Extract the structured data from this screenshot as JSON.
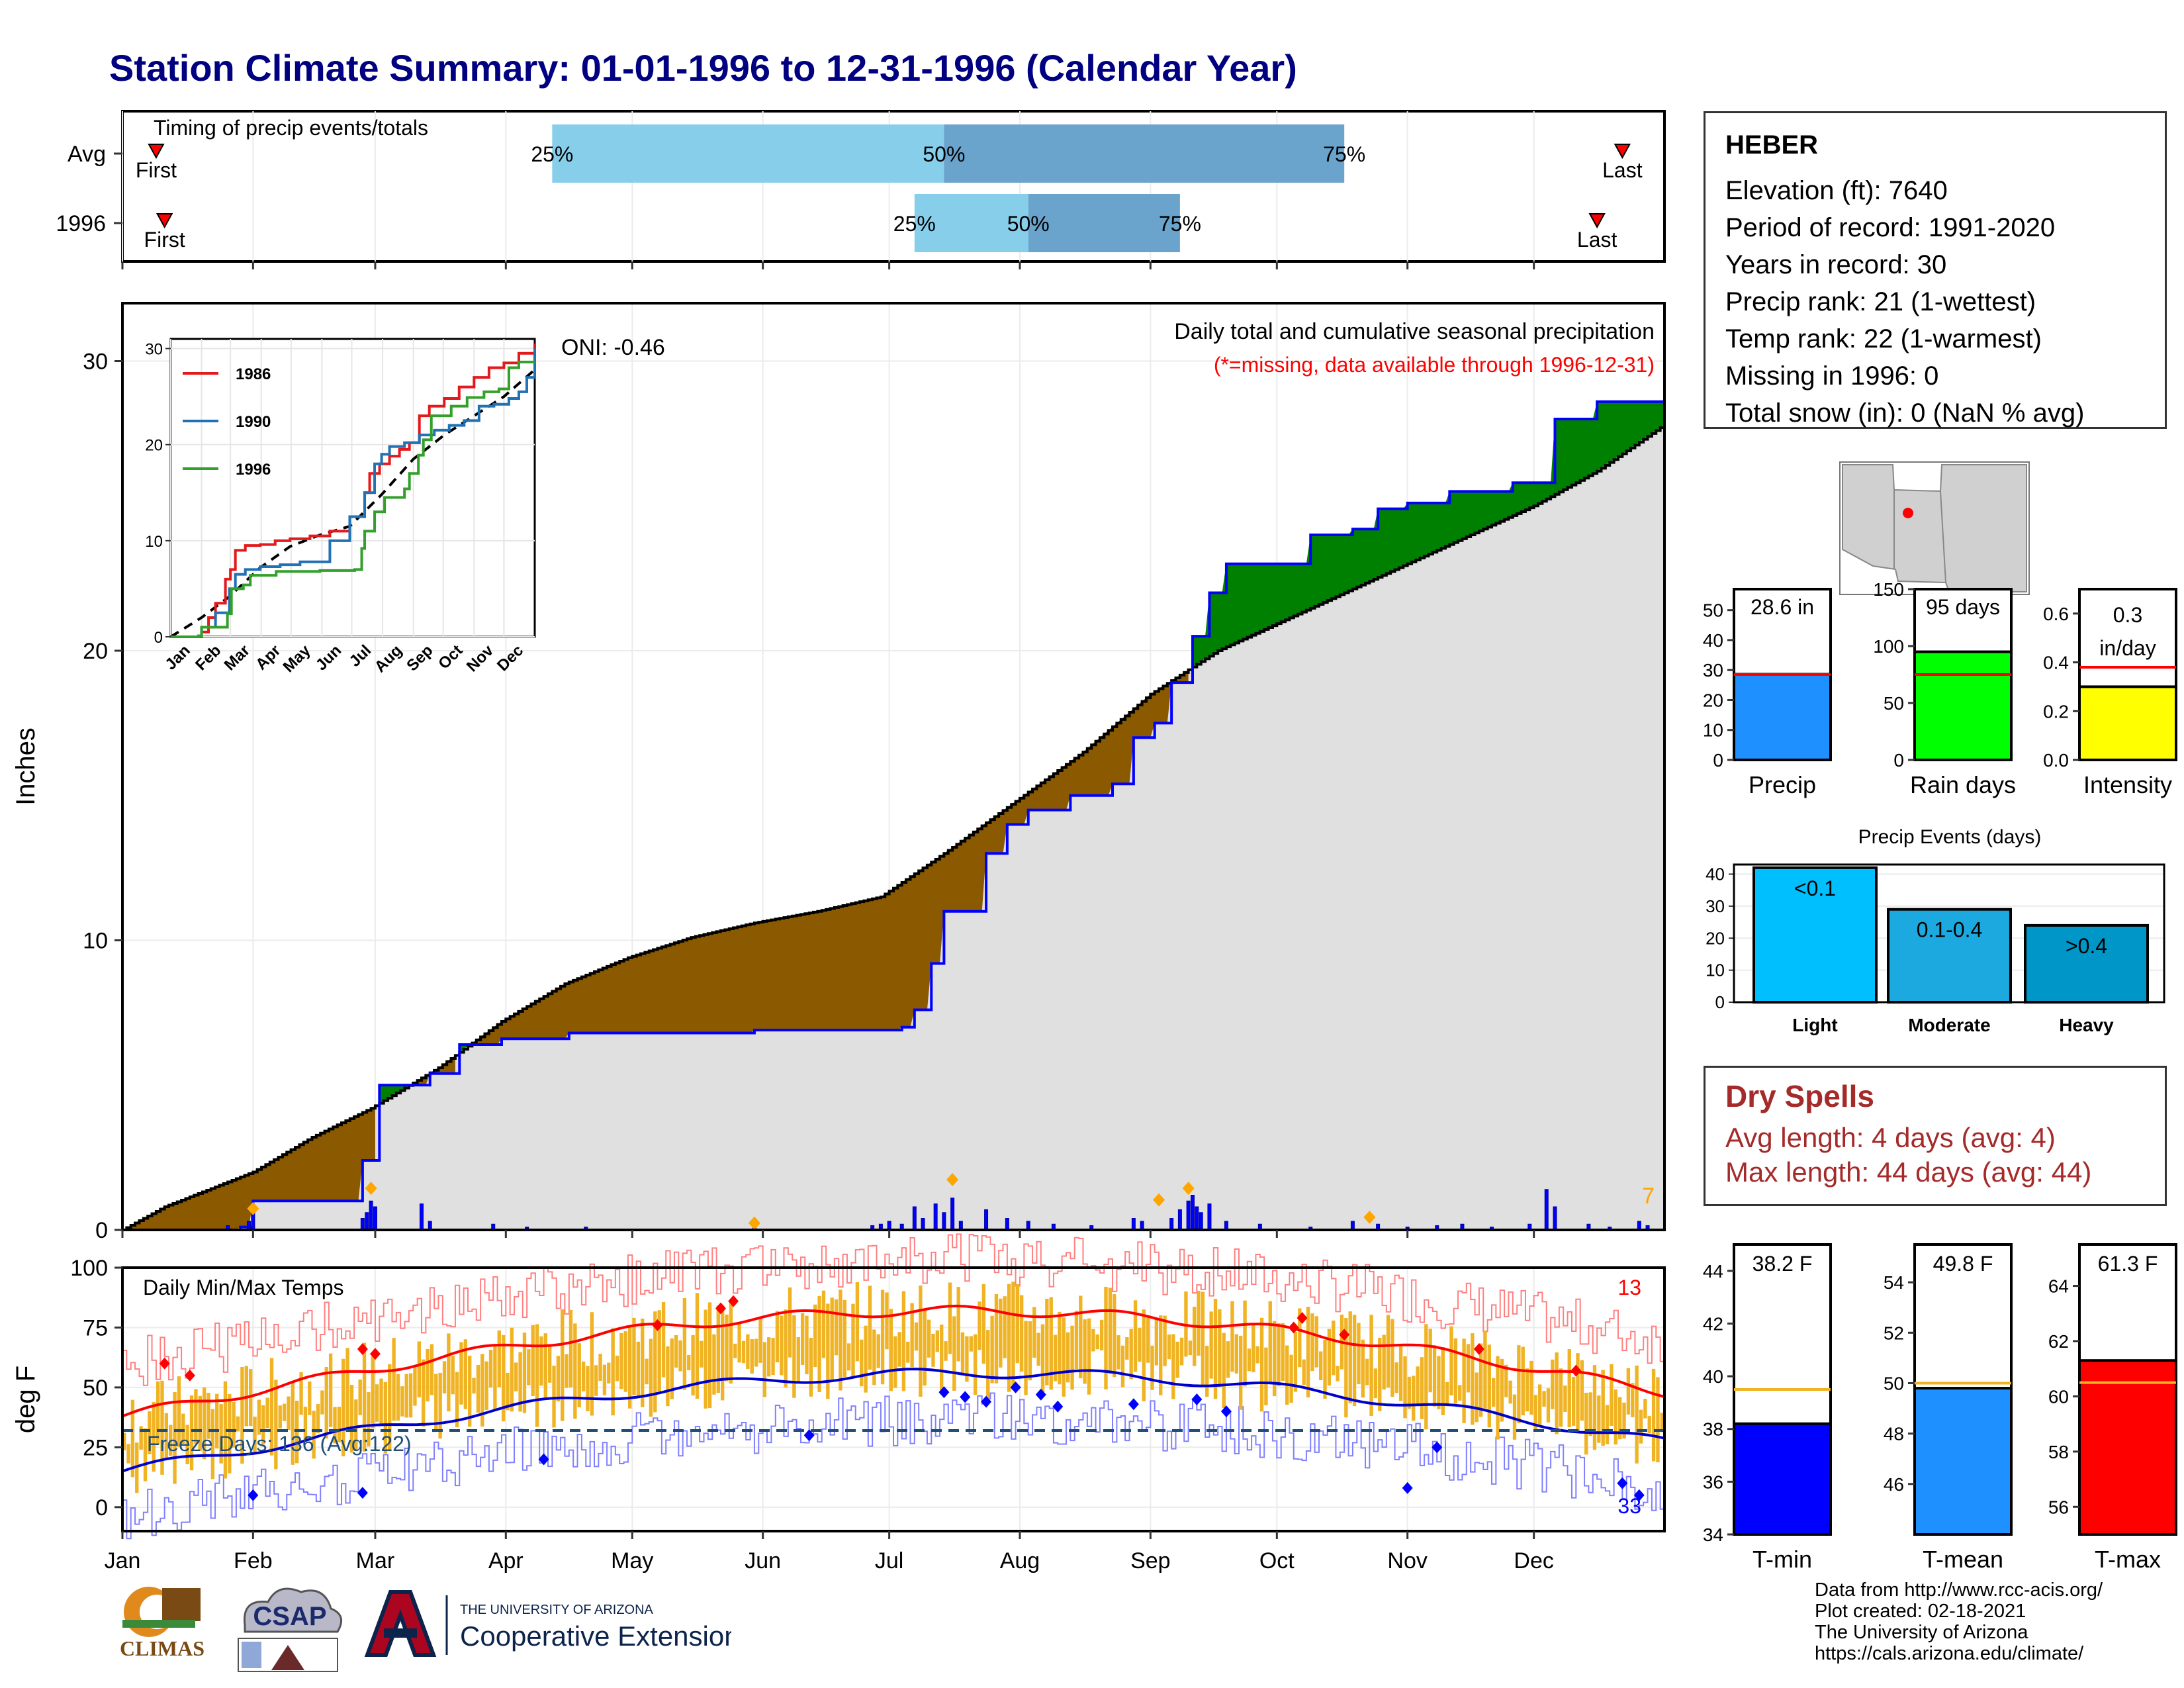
{
  "title": "Station Climate Summary: 01-01-1996 to 12-31-1996 (Calendar Year)",
  "colors": {
    "title": "#000080",
    "normal_fill": "#e0e0e0",
    "below_fill": "#8b5a00",
    "above_fill": "#008000",
    "observed_line": "#0000ff",
    "normal_line": "#000000",
    "q_light": "#87ceeb",
    "q_dark": "#6aa3cc",
    "temp_bar": "#f0b323",
    "tmax": "#ff0000",
    "tmin": "#0000cd",
    "marker": "#ffa500"
  },
  "months": [
    "Jan",
    "Feb",
    "Mar",
    "Apr",
    "May",
    "Jun",
    "Jul",
    "Aug",
    "Sep",
    "Oct",
    "Nov",
    "Dec"
  ],
  "timing": {
    "label": "Timing of precip events/totals",
    "rows": [
      {
        "name": "Avg",
        "first": "First",
        "last": "Last",
        "first_doy": 8,
        "last_doy": 356,
        "q25": 102,
        "q50": 195,
        "q75": 290
      },
      {
        "name": "1996",
        "first": "First",
        "last": "Last",
        "first_doy": 10,
        "last_doy": 350,
        "q25": 188,
        "q50": 215,
        "q75": 251
      }
    ],
    "q_labels": [
      "25%",
      "50%",
      "75%"
    ]
  },
  "precip": {
    "ylabel": "Inches",
    "oni": "ONI: -0.46",
    "title": "Daily total and cumulative seasonal precipitation",
    "subtitle": "(*=missing, data available through 1996-12-31)",
    "count_label": "7",
    "y_ticks": [
      0,
      10,
      20,
      30
    ],
    "ylim": [
      0,
      32
    ],
    "normal_points": [
      [
        0,
        0
      ],
      [
        10,
        0.8
      ],
      [
        31,
        2.0
      ],
      [
        45,
        3.2
      ],
      [
        59,
        4.2
      ],
      [
        75,
        5.6
      ],
      [
        90,
        7.2
      ],
      [
        105,
        8.5
      ],
      [
        120,
        9.4
      ],
      [
        135,
        10.1
      ],
      [
        150,
        10.6
      ],
      [
        165,
        11.0
      ],
      [
        180,
        11.5
      ],
      [
        195,
        13.0
      ],
      [
        212,
        14.8
      ],
      [
        228,
        16.5
      ],
      [
        244,
        18.5
      ],
      [
        260,
        20.0
      ],
      [
        275,
        21.0
      ],
      [
        290,
        22.0
      ],
      [
        305,
        23.0
      ],
      [
        320,
        24.0
      ],
      [
        335,
        25.0
      ],
      [
        350,
        26.2
      ],
      [
        366,
        27.8
      ]
    ],
    "observed_steps": [
      [
        0,
        0
      ],
      [
        28,
        0.1
      ],
      [
        31,
        1.0
      ],
      [
        57,
        2.4
      ],
      [
        61,
        5.0
      ],
      [
        73,
        5.4
      ],
      [
        80,
        6.4
      ],
      [
        90,
        6.6
      ],
      [
        106,
        6.8
      ],
      [
        150,
        6.9
      ],
      [
        185,
        7.0
      ],
      [
        188,
        7.6
      ],
      [
        192,
        9.2
      ],
      [
        195,
        11.0
      ],
      [
        205,
        13.0
      ],
      [
        210,
        14.0
      ],
      [
        215,
        14.5
      ],
      [
        225,
        15.0
      ],
      [
        235,
        15.4
      ],
      [
        240,
        17.0
      ],
      [
        245,
        17.5
      ],
      [
        249,
        18.9
      ],
      [
        254,
        20.5
      ],
      [
        258,
        22.0
      ],
      [
        262,
        23.0
      ],
      [
        282,
        24.0
      ],
      [
        292,
        24.2
      ],
      [
        298,
        24.9
      ],
      [
        305,
        25.1
      ],
      [
        315,
        25.5
      ],
      [
        330,
        25.8
      ],
      [
        340,
        28.0
      ],
      [
        350,
        28.6
      ],
      [
        366,
        28.6
      ]
    ],
    "daily_bars": [
      [
        25,
        0.15
      ],
      [
        30,
        0.3
      ],
      [
        31,
        0.6
      ],
      [
        57,
        0.4
      ],
      [
        58,
        0.6
      ],
      [
        59,
        1.0
      ],
      [
        60,
        0.8
      ],
      [
        71,
        0.9
      ],
      [
        73,
        0.3
      ],
      [
        88,
        0.2
      ],
      [
        96,
        0.1
      ],
      [
        110,
        0.1
      ],
      [
        150,
        0.1
      ],
      [
        178,
        0.15
      ],
      [
        180,
        0.2
      ],
      [
        182,
        0.3
      ],
      [
        185,
        0.2
      ],
      [
        188,
        0.8
      ],
      [
        190,
        0.4
      ],
      [
        193,
        0.9
      ],
      [
        195,
        0.6
      ],
      [
        197,
        1.1
      ],
      [
        199,
        0.3
      ],
      [
        205,
        0.7
      ],
      [
        210,
        0.4
      ],
      [
        215,
        0.3
      ],
      [
        221,
        0.2
      ],
      [
        230,
        0.15
      ],
      [
        240,
        0.4
      ],
      [
        242,
        0.3
      ],
      [
        249,
        0.4
      ],
      [
        251,
        0.7
      ],
      [
        253,
        1.0
      ],
      [
        254,
        1.2
      ],
      [
        255,
        0.8
      ],
      [
        256,
        0.6
      ],
      [
        258,
        0.9
      ],
      [
        262,
        0.3
      ],
      [
        270,
        0.2
      ],
      [
        282,
        0.1
      ],
      [
        292,
        0.3
      ],
      [
        298,
        0.2
      ],
      [
        305,
        0.1
      ],
      [
        312,
        0.15
      ],
      [
        318,
        0.2
      ],
      [
        325,
        0.1
      ],
      [
        334,
        0.2
      ],
      [
        338,
        1.4
      ],
      [
        340,
        0.8
      ],
      [
        348,
        0.2
      ],
      [
        353,
        0.1
      ],
      [
        360,
        0.3
      ],
      [
        362,
        0.15
      ]
    ],
    "max_markers": [
      [
        31,
        0.6
      ],
      [
        59,
        1.3
      ],
      [
        150,
        0.1
      ],
      [
        197,
        1.6
      ],
      [
        246,
        0.9
      ],
      [
        253,
        1.3
      ],
      [
        296,
        0.3
      ]
    ]
  },
  "inset": {
    "y_ticks": [
      0,
      10,
      20,
      30
    ],
    "ylim": [
      0,
      31
    ],
    "series": [
      {
        "name": "1986",
        "color": "#e31a1c",
        "points": [
          [
            0,
            0
          ],
          [
            31,
            0.5
          ],
          [
            38,
            2
          ],
          [
            45,
            3.5
          ],
          [
            55,
            6
          ],
          [
            60,
            7
          ],
          [
            65,
            9
          ],
          [
            75,
            9.5
          ],
          [
            90,
            9.6
          ],
          [
            105,
            10
          ],
          [
            120,
            10.2
          ],
          [
            140,
            10.5
          ],
          [
            160,
            11
          ],
          [
            180,
            12.5
          ],
          [
            195,
            15
          ],
          [
            200,
            17
          ],
          [
            210,
            18
          ],
          [
            220,
            18.8
          ],
          [
            230,
            19.5
          ],
          [
            240,
            20.2
          ],
          [
            250,
            23
          ],
          [
            260,
            24
          ],
          [
            275,
            24.8
          ],
          [
            290,
            26
          ],
          [
            305,
            27
          ],
          [
            320,
            28
          ],
          [
            335,
            28.5
          ],
          [
            350,
            29.5
          ],
          [
            366,
            30.5
          ]
        ]
      },
      {
        "name": "1990",
        "color": "#2171b5",
        "points": [
          [
            0,
            0
          ],
          [
            31,
            1
          ],
          [
            45,
            2.5
          ],
          [
            59,
            5
          ],
          [
            65,
            6.5
          ],
          [
            75,
            7
          ],
          [
            90,
            7.3
          ],
          [
            110,
            7.5
          ],
          [
            130,
            7.8
          ],
          [
            160,
            10
          ],
          [
            180,
            12.5
          ],
          [
            195,
            15
          ],
          [
            205,
            18
          ],
          [
            212,
            19
          ],
          [
            220,
            19.8
          ],
          [
            235,
            20.2
          ],
          [
            250,
            21
          ],
          [
            265,
            21.5
          ],
          [
            280,
            22
          ],
          [
            295,
            22.5
          ],
          [
            310,
            24
          ],
          [
            325,
            24.2
          ],
          [
            340,
            24.8
          ],
          [
            350,
            25.5
          ],
          [
            358,
            27
          ],
          [
            366,
            30
          ]
        ]
      },
      {
        "name": "1996",
        "color": "#33a02c",
        "points": [
          [
            0,
            0
          ],
          [
            28,
            0.1
          ],
          [
            31,
            1
          ],
          [
            57,
            2.4
          ],
          [
            61,
            5
          ],
          [
            73,
            5.4
          ],
          [
            80,
            6.4
          ],
          [
            106,
            6.8
          ],
          [
            150,
            6.9
          ],
          [
            185,
            7
          ],
          [
            192,
            9.2
          ],
          [
            195,
            11
          ],
          [
            205,
            13
          ],
          [
            215,
            14.5
          ],
          [
            235,
            15.4
          ],
          [
            240,
            17
          ],
          [
            249,
            18.9
          ],
          [
            254,
            20.5
          ],
          [
            262,
            23
          ],
          [
            282,
            24
          ],
          [
            298,
            24.9
          ],
          [
            315,
            25.5
          ],
          [
            330,
            25.8
          ],
          [
            340,
            28
          ],
          [
            350,
            28.6
          ],
          [
            366,
            28.6
          ]
        ]
      }
    ],
    "normal_points": [
      [
        0,
        0
      ],
      [
        31,
        2
      ],
      [
        59,
        4.2
      ],
      [
        90,
        7.2
      ],
      [
        120,
        9.4
      ],
      [
        150,
        10.6
      ],
      [
        180,
        11.5
      ],
      [
        212,
        14.8
      ],
      [
        244,
        18.5
      ],
      [
        275,
        21
      ],
      [
        305,
        23
      ],
      [
        335,
        25
      ],
      [
        366,
        27.8
      ]
    ]
  },
  "temps": {
    "ylabel": "deg F",
    "title": "Daily Min/Max Temps",
    "freeze_label": "Freeze Days: 136 (Avg:122)",
    "freeze_line": 32,
    "hot_count": "13",
    "cold_count": "33",
    "y_ticks": [
      0,
      25,
      50,
      75,
      100
    ],
    "ylim": [
      -10,
      100
    ]
  },
  "gauges": [
    {
      "id": "precip",
      "label": "Precip",
      "value": 28.6,
      "value_text": "28.6 in",
      "normal": 28.5,
      "ylim": [
        0,
        57
      ],
      "ticks": [
        0,
        10,
        20,
        30,
        40,
        50
      ],
      "color": "#1e90ff",
      "normal_color": "#ff0000"
    },
    {
      "id": "raindays",
      "label": "Rain days",
      "value": 95,
      "value_text": "95 days",
      "normal": 75,
      "ylim": [
        0,
        150
      ],
      "ticks": [
        0,
        50,
        100,
        150
      ],
      "color": "#00ff00",
      "normal_color": "#ff0000"
    },
    {
      "id": "intensity",
      "label": "Intensity",
      "value": 0.3,
      "value_text": "0.3",
      "value_text2": "in/day",
      "normal": 0.38,
      "ylim": [
        0,
        0.7
      ],
      "ticks": [
        "0.0",
        "0.2",
        "0.4",
        "0.6"
      ],
      "color": "#ffff00",
      "normal_color": "#ff0000"
    }
  ],
  "events": {
    "title": "Precip Events (days)",
    "y_ticks": [
      0,
      10,
      20,
      30,
      40
    ],
    "ylim": [
      0,
      43
    ],
    "bars": [
      {
        "category": "Light",
        "value": 42,
        "label": "<0.1",
        "color": "#00bfff"
      },
      {
        "category": "Moderate",
        "value": 29,
        "label": "0.1-0.4",
        "color": "#1ca9e0"
      },
      {
        "category": "Heavy",
        "value": 24,
        "label": ">0.4",
        "color": "#0096c7"
      }
    ]
  },
  "tgauges": [
    {
      "label": "T-min",
      "value": 38.2,
      "value_text": "38.2 F",
      "normal": 39.5,
      "ylim": [
        34,
        45
      ],
      "ticks": [
        34,
        36,
        38,
        40,
        42,
        44
      ],
      "color": "#0000ff"
    },
    {
      "label": "T-mean",
      "value": 49.8,
      "value_text": "49.8 F",
      "normal": 50.0,
      "ylim": [
        44,
        55.5
      ],
      "ticks": [
        46,
        48,
        50,
        52,
        54
      ],
      "color": "#1e90ff"
    },
    {
      "label": "T-max",
      "value": 61.3,
      "value_text": "61.3 F",
      "normal": 60.5,
      "ylim": [
        55,
        65.5
      ],
      "ticks": [
        56,
        58,
        60,
        62,
        64
      ],
      "color": "#ff0000"
    }
  ],
  "station": {
    "name": "HEBER",
    "lines": [
      "Elevation (ft): 7640",
      "Period of record: 1991-2020",
      "Years in record: 30",
      "Precip rank: 21 (1-wettest)",
      "Temp rank: 22 (1-warmest)",
      "Missing in 1996: 0",
      "Total snow (in): 0 (NaN % avg)"
    ]
  },
  "dry": {
    "title": "Dry Spells",
    "avg": "Avg length: 4 days (avg: 4)",
    "max": "Max length: 44 days (avg: 44)"
  },
  "credits": [
    "Data from http://www.rcc-acis.org/",
    "Plot created: 02-18-2021",
    "The University of Arizona",
    "https://cals.arizona.edu/climate/"
  ],
  "logos": {
    "climas": "CLIMAS",
    "csap": "CSAP",
    "ua_small": "THE UNIVERSITY OF ARIZONA",
    "ua_ext": "Cooperative Extension"
  }
}
